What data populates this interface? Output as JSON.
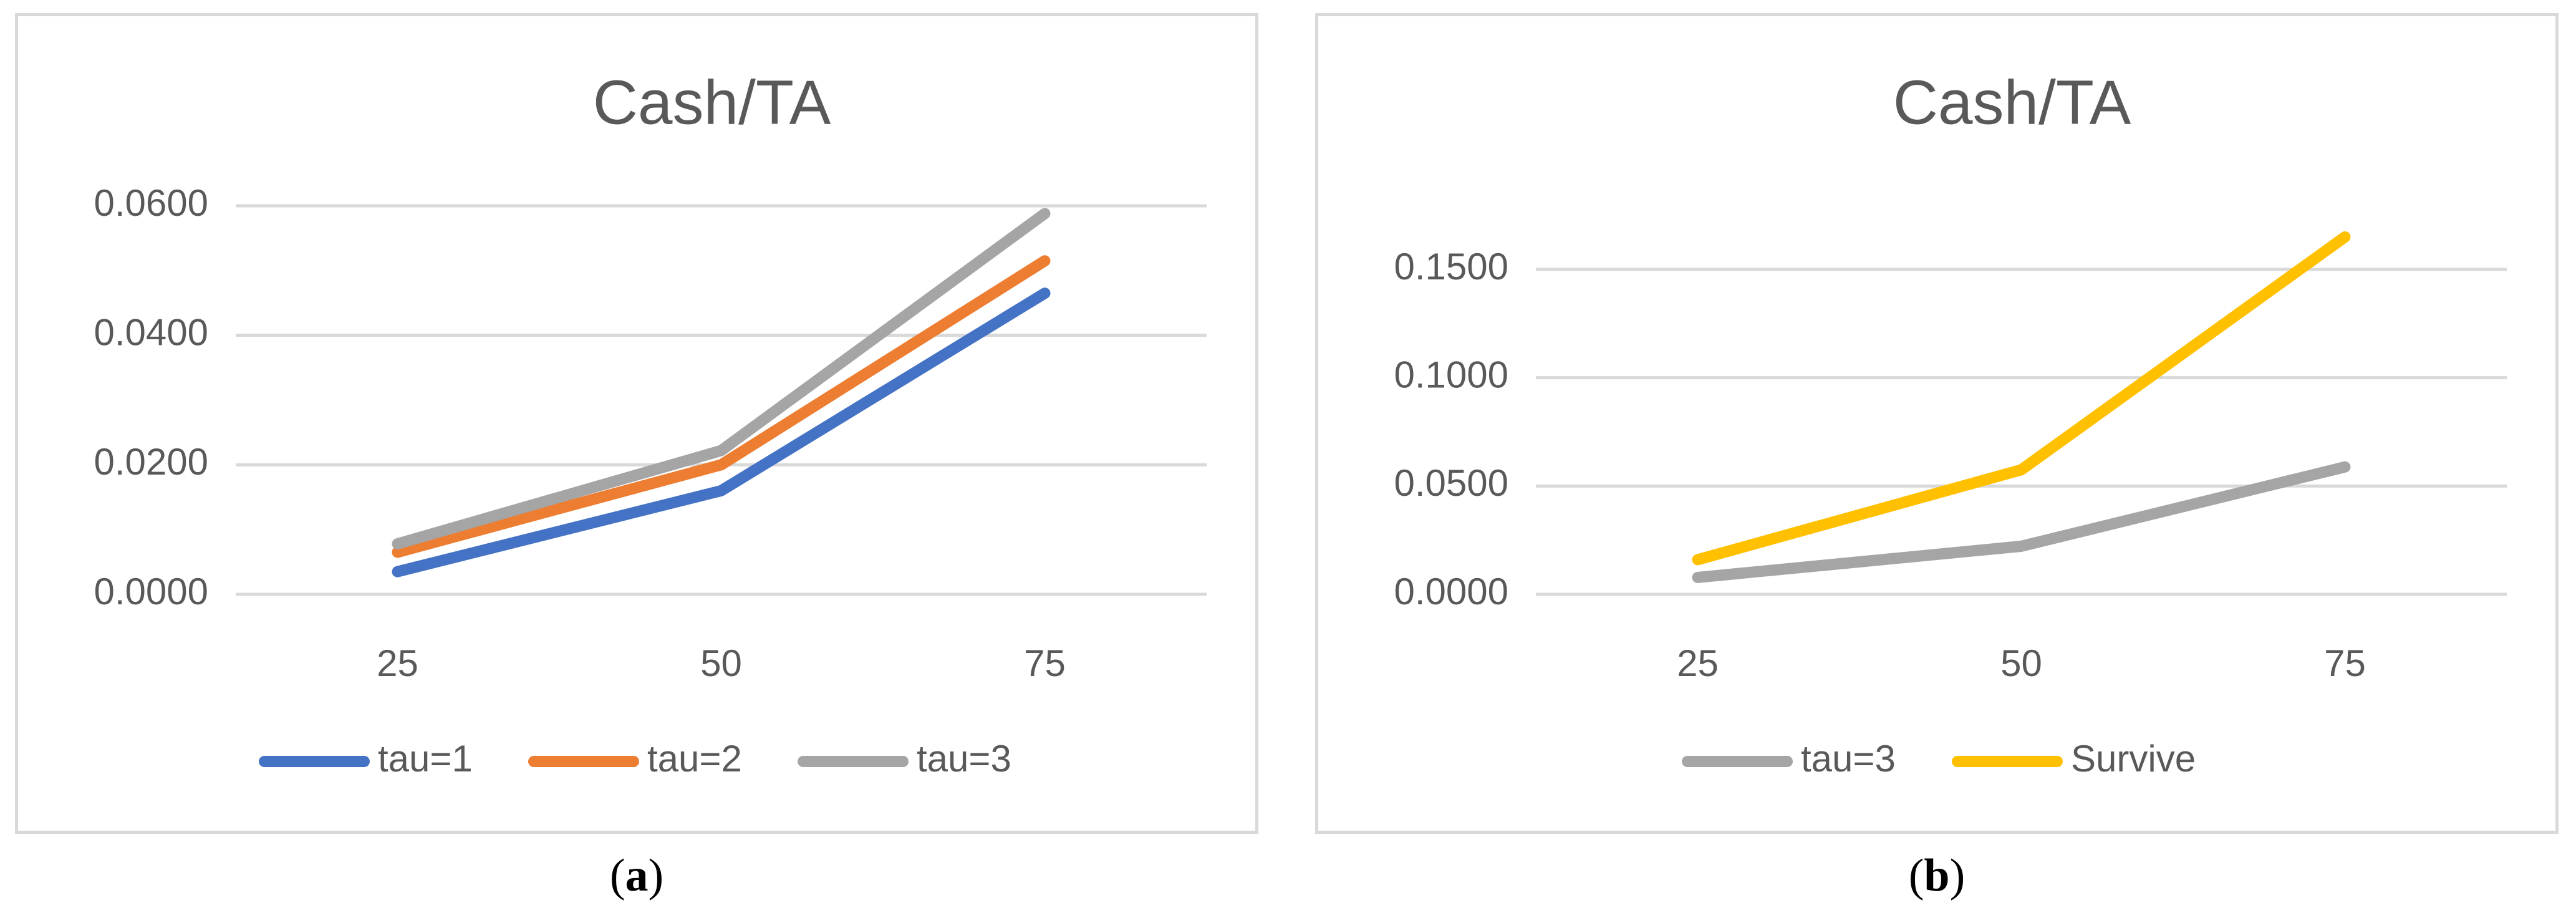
{
  "chart_data": [
    {
      "id": "a",
      "type": "line",
      "title": "Cash/TA",
      "xlabel": "",
      "ylabel": "",
      "categories": [
        "25",
        "50",
        "75"
      ],
      "ylim": [
        0,
        0.06
      ],
      "yticks": [
        "0.0000",
        "0.0200",
        "0.0400",
        "0.0600"
      ],
      "ytick_values": [
        0,
        0.02,
        0.04,
        0.06
      ],
      "grid": true,
      "legend_position": "bottom",
      "series": [
        {
          "name": "tau=1",
          "values": [
            0.0035,
            0.016,
            0.0465
          ],
          "color": "#4472c4"
        },
        {
          "name": "tau=2",
          "values": [
            0.0065,
            0.02,
            0.0515
          ],
          "color": "#ed7d31"
        },
        {
          "name": "tau=3",
          "values": [
            0.0078,
            0.0222,
            0.0588
          ],
          "color": "#a5a5a5"
        }
      ],
      "caption": "a"
    },
    {
      "id": "b",
      "type": "line",
      "title": "Cash/TA",
      "xlabel": "",
      "ylabel": "",
      "categories": [
        "25",
        "50",
        "75"
      ],
      "ylim": [
        0,
        0.15
      ],
      "yticks": [
        "0.0000",
        "0.0500",
        "0.1000",
        "0.1500"
      ],
      "ytick_values": [
        0,
        0.05,
        0.1,
        0.15
      ],
      "grid": true,
      "legend_position": "bottom",
      "series": [
        {
          "name": "tau=3",
          "values": [
            0.0078,
            0.0222,
            0.0588
          ],
          "color": "#a5a5a5"
        },
        {
          "name": "Survive",
          "values": [
            0.016,
            0.0575,
            0.165
          ],
          "color": "#ffc000"
        }
      ],
      "caption": "b"
    }
  ]
}
